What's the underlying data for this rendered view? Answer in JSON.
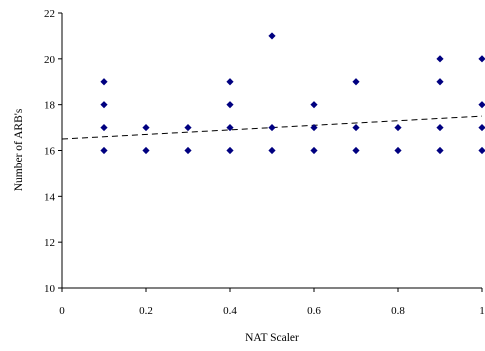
{
  "chart_data": {
    "type": "scatter",
    "title": "",
    "xlabel": "NAT Scaler",
    "ylabel": "Number of ARB's",
    "xlim": [
      0,
      1
    ],
    "ylim": [
      10,
      22
    ],
    "x_ticks": [
      0,
      0.2,
      0.4,
      0.6,
      0.8,
      1
    ],
    "x_tick_labels": [
      "0",
      "0.2",
      "0.4",
      "0.6",
      "0.8",
      "1"
    ],
    "y_ticks": [
      10,
      12,
      14,
      16,
      18,
      20,
      22
    ],
    "y_tick_labels": [
      "10",
      "12",
      "14",
      "16",
      "18",
      "20",
      "22"
    ],
    "grid": false,
    "legend": "none",
    "marker": "diamond",
    "marker_color": "#000080",
    "trendline": {
      "style": "dashed",
      "x": [
        0,
        1
      ],
      "y": [
        16.5,
        17.5
      ]
    },
    "series": [
      {
        "x": [
          0.1,
          0.1,
          0.1,
          0.1,
          0.2,
          0.2,
          0.3,
          0.3,
          0.4,
          0.4,
          0.4,
          0.4,
          0.5,
          0.5,
          0.5,
          0.6,
          0.6,
          0.6,
          0.7,
          0.7,
          0.7,
          0.8,
          0.8,
          0.9,
          0.9,
          0.9,
          0.9,
          1.0,
          1.0,
          1.0,
          1.0
        ],
        "y": [
          19,
          18,
          17,
          16,
          17,
          16,
          17,
          16,
          19,
          18,
          17,
          16,
          21,
          17,
          16,
          18,
          17,
          16,
          19,
          17,
          16,
          17,
          16,
          20,
          19,
          17,
          16,
          20,
          18,
          17,
          16
        ]
      }
    ]
  }
}
